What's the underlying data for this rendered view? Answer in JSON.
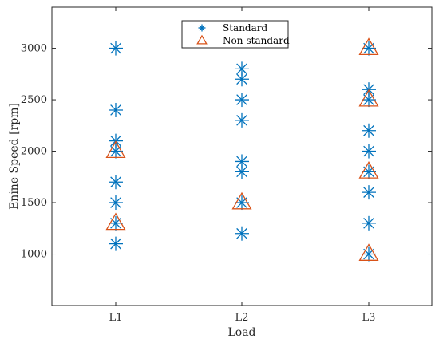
{
  "chart_data": {
    "type": "scatter",
    "title": "",
    "xlabel": "Load",
    "ylabel": "Enine Speed [rpm]",
    "categories": [
      "L1",
      "L2",
      "L3"
    ],
    "ylim": [
      500,
      3400
    ],
    "yticks": [
      1000,
      1500,
      2000,
      2500,
      3000
    ],
    "grid": false,
    "legend_position": "top-center",
    "series": [
      {
        "name": "Standard",
        "marker": "asterisk",
        "color": "#0072BD",
        "points": [
          {
            "x": "L1",
            "y": 3000
          },
          {
            "x": "L1",
            "y": 2400
          },
          {
            "x": "L1",
            "y": 2100
          },
          {
            "x": "L1",
            "y": 2000
          },
          {
            "x": "L1",
            "y": 1700
          },
          {
            "x": "L1",
            "y": 1500
          },
          {
            "x": "L1",
            "y": 1300
          },
          {
            "x": "L1",
            "y": 1100
          },
          {
            "x": "L2",
            "y": 2800
          },
          {
            "x": "L2",
            "y": 2700
          },
          {
            "x": "L2",
            "y": 2500
          },
          {
            "x": "L2",
            "y": 2300
          },
          {
            "x": "L2",
            "y": 1900
          },
          {
            "x": "L2",
            "y": 1800
          },
          {
            "x": "L2",
            "y": 1500
          },
          {
            "x": "L2",
            "y": 1200
          },
          {
            "x": "L3",
            "y": 3000
          },
          {
            "x": "L3",
            "y": 2600
          },
          {
            "x": "L3",
            "y": 2500
          },
          {
            "x": "L3",
            "y": 2200
          },
          {
            "x": "L3",
            "y": 2000
          },
          {
            "x": "L3",
            "y": 1800
          },
          {
            "x": "L3",
            "y": 1600
          },
          {
            "x": "L3",
            "y": 1300
          },
          {
            "x": "L3",
            "y": 1000
          }
        ]
      },
      {
        "name": "Non-standard",
        "marker": "triangle",
        "color": "#D95319",
        "points": [
          {
            "x": "L1",
            "y": 2000
          },
          {
            "x": "L1",
            "y": 1300
          },
          {
            "x": "L2",
            "y": 1500
          },
          {
            "x": "L3",
            "y": 3000
          },
          {
            "x": "L3",
            "y": 2500
          },
          {
            "x": "L3",
            "y": 1800
          },
          {
            "x": "L3",
            "y": 1000
          }
        ]
      }
    ]
  }
}
